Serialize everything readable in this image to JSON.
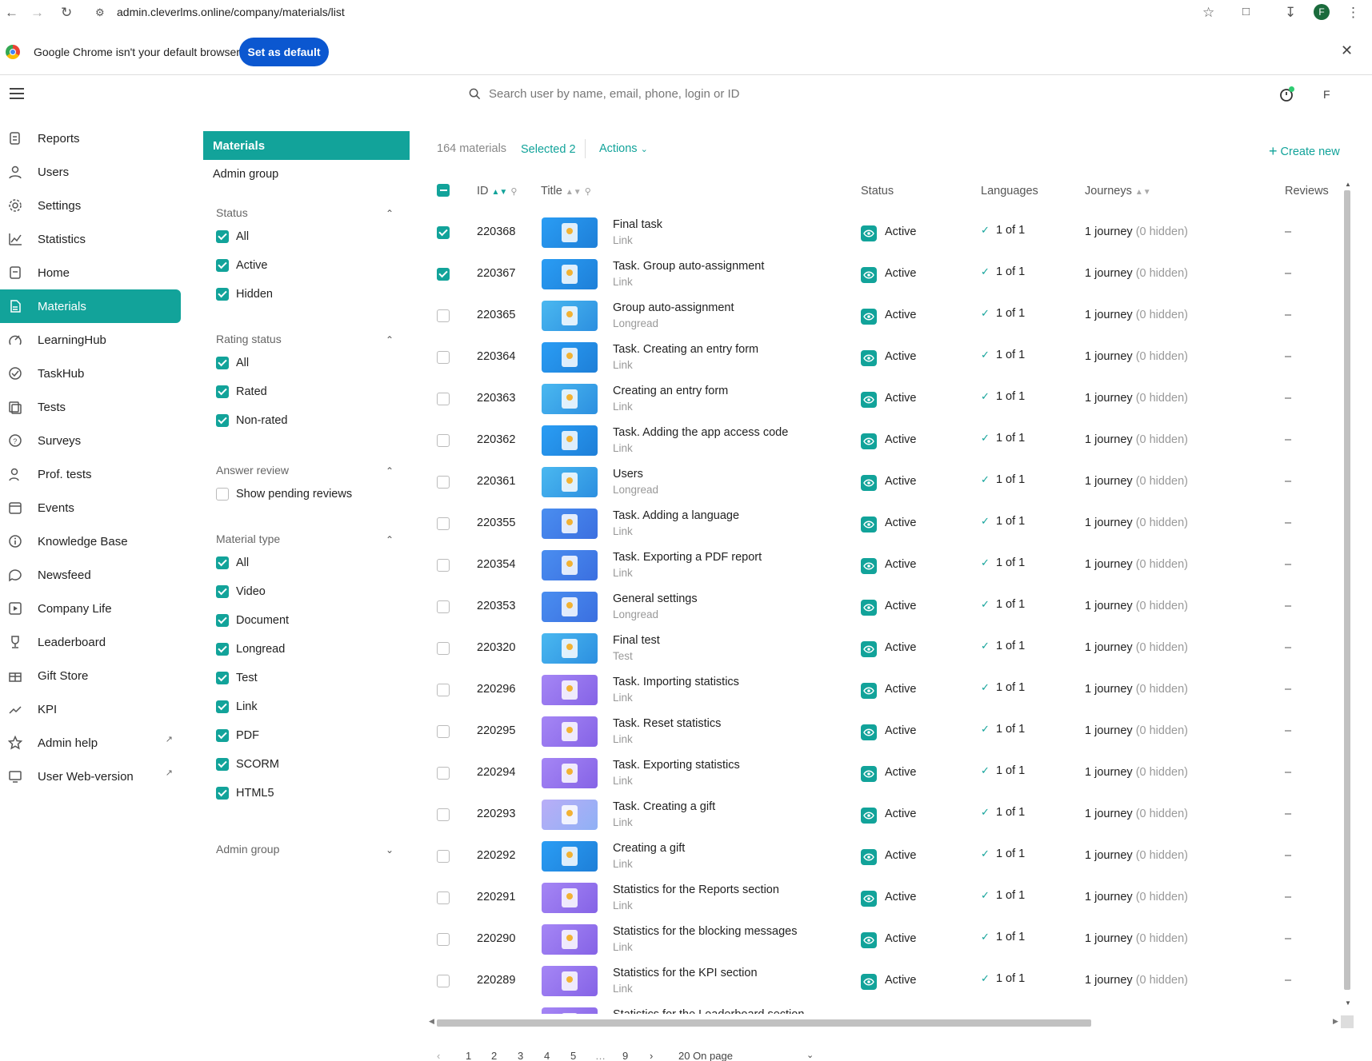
{
  "browser": {
    "url": "admin.cleverlms.online/company/materials/list",
    "profile_initial": "F",
    "infobar_text": "Google Chrome isn't your default browser",
    "set_default_label": "Set as default"
  },
  "header": {
    "search_placeholder": "Search user by name, email, phone, login or ID",
    "user_initial": "F"
  },
  "sidebar": {
    "items": [
      {
        "label": "Reports",
        "icon": "reports-icon"
      },
      {
        "label": "Users",
        "icon": "users-icon"
      },
      {
        "label": "Settings",
        "icon": "gear-icon"
      },
      {
        "label": "Statistics",
        "icon": "chart-icon"
      },
      {
        "label": "Home",
        "icon": "home-icon"
      },
      {
        "label": "Materials",
        "icon": "document-icon",
        "active": true
      },
      {
        "label": "LearningHub",
        "icon": "hub-icon"
      },
      {
        "label": "TaskHub",
        "icon": "check-circle-icon"
      },
      {
        "label": "Tests",
        "icon": "tests-icon"
      },
      {
        "label": "Surveys",
        "icon": "question-icon"
      },
      {
        "label": "Prof. tests",
        "icon": "person-icon"
      },
      {
        "label": "Events",
        "icon": "calendar-icon"
      },
      {
        "label": "Knowledge Base",
        "icon": "info-icon"
      },
      {
        "label": "Newsfeed",
        "icon": "chat-icon"
      },
      {
        "label": "Company Life",
        "icon": "play-icon"
      },
      {
        "label": "Leaderboard",
        "icon": "trophy-icon"
      },
      {
        "label": "Gift Store",
        "icon": "gift-icon"
      },
      {
        "label": "KPI",
        "icon": "trend-icon"
      },
      {
        "label": "Admin help",
        "icon": "star-icon",
        "external": true
      },
      {
        "label": "User Web-version",
        "icon": "monitor-icon",
        "external": true
      }
    ]
  },
  "filters": {
    "materials_label": "Materials",
    "admin_group_link": "Admin group",
    "status": {
      "title": "Status",
      "options": [
        "All",
        "Active",
        "Hidden"
      ]
    },
    "rating": {
      "title": "Rating status",
      "options": [
        "All",
        "Rated",
        "Non-rated"
      ]
    },
    "answer_review": {
      "title": "Answer review",
      "option": "Show pending reviews"
    },
    "material_type": {
      "title": "Material type",
      "options": [
        "All",
        "Video",
        "Document",
        "Longread",
        "Test",
        "Link",
        "PDF",
        "SCORM",
        "HTML5"
      ]
    },
    "admin_group_title": "Admin group"
  },
  "toolbar": {
    "count": "164 materials",
    "selected": "Selected 2",
    "actions": "Actions",
    "create_new": "Create new"
  },
  "table": {
    "columns": {
      "id": "ID",
      "title": "Title",
      "status": "Status",
      "languages": "Languages",
      "journeys": "Journeys",
      "reviews": "Reviews"
    },
    "rows": [
      {
        "id": "220368",
        "title": "Final task",
        "type": "Link",
        "status": "Active",
        "lang": "1 of 1",
        "journey": "1 journey",
        "hidden": "(0 hidden)",
        "review": "–",
        "checked": true,
        "thumb": "blue"
      },
      {
        "id": "220367",
        "title": "Task. Group auto-assignment",
        "type": "Link",
        "status": "Active",
        "lang": "1 of 1",
        "journey": "1 journey",
        "hidden": "(0 hidden)",
        "review": "–",
        "checked": true,
        "thumb": "blue"
      },
      {
        "id": "220365",
        "title": "Group auto-assignment",
        "type": "Longread",
        "status": "Active",
        "lang": "1 of 1",
        "journey": "1 journey",
        "hidden": "(0 hidden)",
        "review": "–",
        "checked": false,
        "thumb": "sky"
      },
      {
        "id": "220364",
        "title": "Task. Creating an entry form",
        "type": "Link",
        "status": "Active",
        "lang": "1 of 1",
        "journey": "1 journey",
        "hidden": "(0 hidden)",
        "review": "–",
        "checked": false,
        "thumb": "blue"
      },
      {
        "id": "220363",
        "title": "Creating an entry form",
        "type": "Link",
        "status": "Active",
        "lang": "1 of 1",
        "journey": "1 journey",
        "hidden": "(0 hidden)",
        "review": "–",
        "checked": false,
        "thumb": "sky"
      },
      {
        "id": "220362",
        "title": "Task. Adding the app access code",
        "type": "Link",
        "status": "Active",
        "lang": "1 of 1",
        "journey": "1 journey",
        "hidden": "(0 hidden)",
        "review": "–",
        "checked": false,
        "thumb": "blue"
      },
      {
        "id": "220361",
        "title": "Users",
        "type": "Longread",
        "status": "Active",
        "lang": "1 of 1",
        "journey": "1 journey",
        "hidden": "(0 hidden)",
        "review": "–",
        "checked": false,
        "thumb": "sky"
      },
      {
        "id": "220355",
        "title": "Task. Adding a language",
        "type": "Link",
        "status": "Active",
        "lang": "1 of 1",
        "journey": "1 journey",
        "hidden": "(0 hidden)",
        "review": "–",
        "checked": false,
        "thumb": "indigo"
      },
      {
        "id": "220354",
        "title": "Task. Exporting a PDF report",
        "type": "Link",
        "status": "Active",
        "lang": "1 of 1",
        "journey": "1 journey",
        "hidden": "(0 hidden)",
        "review": "–",
        "checked": false,
        "thumb": "indigo"
      },
      {
        "id": "220353",
        "title": "General settings",
        "type": "Longread",
        "status": "Active",
        "lang": "1 of 1",
        "journey": "1 journey",
        "hidden": "(0 hidden)",
        "review": "–",
        "checked": false,
        "thumb": "indigo"
      },
      {
        "id": "220320",
        "title": "Final test",
        "type": "Test",
        "status": "Active",
        "lang": "1 of 1",
        "journey": "1 journey",
        "hidden": "(0 hidden)",
        "review": "–",
        "checked": false,
        "thumb": "sky"
      },
      {
        "id": "220296",
        "title": "Task. Importing statistics",
        "type": "Link",
        "status": "Active",
        "lang": "1 of 1",
        "journey": "1 journey",
        "hidden": "(0 hidden)",
        "review": "–",
        "checked": false,
        "thumb": "violet"
      },
      {
        "id": "220295",
        "title": "Task. Reset statistics",
        "type": "Link",
        "status": "Active",
        "lang": "1 of 1",
        "journey": "1 journey",
        "hidden": "(0 hidden)",
        "review": "–",
        "checked": false,
        "thumb": "violet"
      },
      {
        "id": "220294",
        "title": "Task. Exporting statistics",
        "type": "Link",
        "status": "Active",
        "lang": "1 of 1",
        "journey": "1 journey",
        "hidden": "(0 hidden)",
        "review": "–",
        "checked": false,
        "thumb": "violet"
      },
      {
        "id": "220293",
        "title": "Task. Creating a gift",
        "type": "Link",
        "status": "Active",
        "lang": "1 of 1",
        "journey": "1 journey",
        "hidden": "(0 hidden)",
        "review": "–",
        "checked": false,
        "thumb": "lavender"
      },
      {
        "id": "220292",
        "title": "Creating a gift",
        "type": "Link",
        "status": "Active",
        "lang": "1 of 1",
        "journey": "1 journey",
        "hidden": "(0 hidden)",
        "review": "–",
        "checked": false,
        "thumb": "blue"
      },
      {
        "id": "220291",
        "title": "Statistics for the Reports section",
        "type": "Link",
        "status": "Active",
        "lang": "1 of 1",
        "journey": "1 journey",
        "hidden": "(0 hidden)",
        "review": "–",
        "checked": false,
        "thumb": "violet"
      },
      {
        "id": "220290",
        "title": "Statistics for the blocking messages",
        "type": "Link",
        "status": "Active",
        "lang": "1 of 1",
        "journey": "1 journey",
        "hidden": "(0 hidden)",
        "review": "–",
        "checked": false,
        "thumb": "violet"
      },
      {
        "id": "220289",
        "title": "Statistics for the KPI section",
        "type": "Link",
        "status": "Active",
        "lang": "1 of 1",
        "journey": "1 journey",
        "hidden": "(0 hidden)",
        "review": "–",
        "checked": false,
        "thumb": "violet"
      },
      {
        "id": "",
        "title": "Statistics for the Leaderboard section",
        "type": "",
        "status": "",
        "lang": "",
        "journey": "",
        "hidden": "",
        "review": "",
        "checked": false,
        "thumb": "violet"
      }
    ]
  },
  "pager": {
    "pages": [
      "1",
      "2",
      "3",
      "4",
      "5",
      "9"
    ],
    "per_page": "20 On page"
  },
  "colors": {
    "accent": "#12a39a",
    "chrome_blue": "#0b57d0"
  }
}
